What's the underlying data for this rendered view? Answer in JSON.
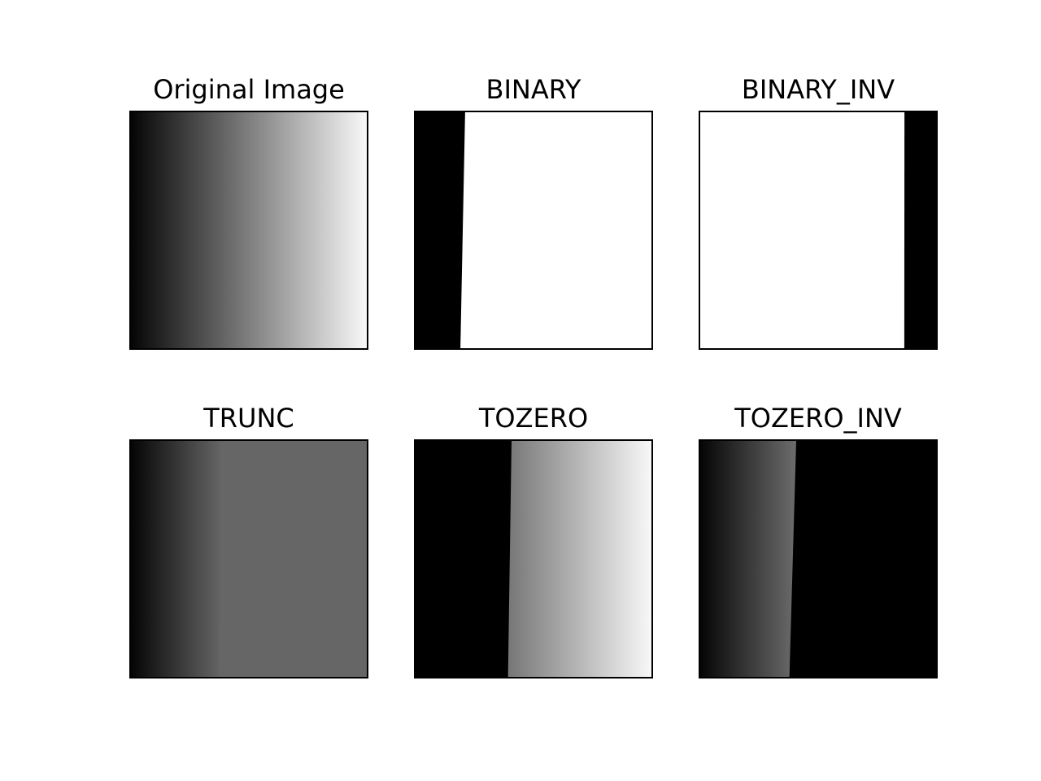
{
  "figure": {
    "panels": [
      {
        "title": "Original Image",
        "mode": "original"
      },
      {
        "title": "BINARY",
        "mode": "binary"
      },
      {
        "title": "BINARY_INV",
        "mode": "binary_inv"
      },
      {
        "title": "TRUNC",
        "mode": "trunc"
      },
      {
        "title": "TOZERO",
        "mode": "tozero"
      },
      {
        "title": "TOZERO_INV",
        "mode": "tozero_inv"
      }
    ],
    "threshold_fraction_top": 0.21,
    "threshold_fraction_bottom": 0.19,
    "tozero_edge_fraction_top": 0.4,
    "tozero_edge_fraction_bottom": 0.385,
    "trunc_level_color": "#666666",
    "colors": {
      "black": "#000000",
      "white": "#ffffff",
      "dark": "#050505",
      "light": "#f8f8f8"
    }
  }
}
